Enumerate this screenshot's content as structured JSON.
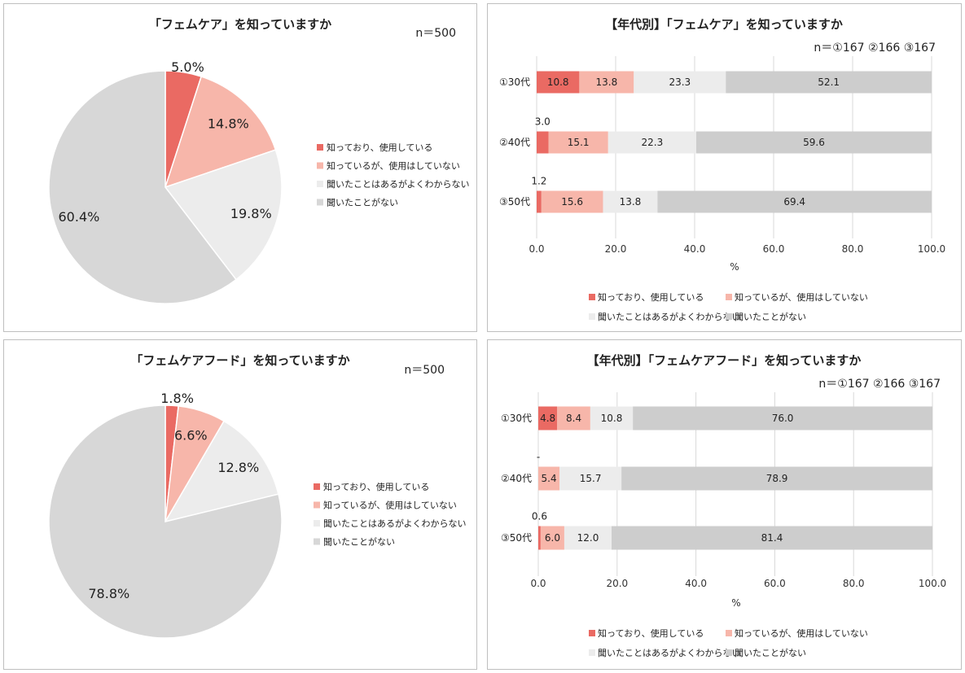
{
  "colors": {
    "knows_uses": "#ea6a63",
    "knows_not_use": "#f7b6aa",
    "heard_unclear": "#ececec",
    "never_heard": "#d7d7d7",
    "bar_never_heard": "#cdcdcd",
    "grid": "#d9d9d9"
  },
  "legend": [
    "知っており、使用している",
    "知っているが、使用はしていない",
    "聞いたことはあるがよくわからない",
    "聞いたことがない"
  ],
  "chart_data": [
    {
      "type": "pie",
      "title": "「フェムケア」を知っていますか",
      "n_label": "n＝500",
      "labels": [
        "知っており、使用している",
        "知っているが、使用はしていない",
        "聞いたことはあるがよくわからない",
        "聞いたことがない"
      ],
      "values": [
        5.0,
        14.8,
        19.8,
        60.4
      ],
      "value_labels": [
        "5.0%",
        "14.8%",
        "19.8%",
        "60.4%"
      ]
    },
    {
      "type": "bar",
      "orientation": "horizontal-stacked",
      "title": "【年代別】「フェムケア」を知っていますか",
      "n_label": "n＝①167 ②166 ③167",
      "categories": [
        "①30代",
        "②40代",
        "③50代"
      ],
      "series": [
        {
          "name": "知っており、使用している",
          "values": [
            10.8,
            3.0,
            1.2
          ]
        },
        {
          "name": "知っているが、使用はしていない",
          "values": [
            13.8,
            15.1,
            15.6
          ]
        },
        {
          "name": "聞いたことはあるがよくわからない",
          "values": [
            23.3,
            22.3,
            13.8
          ]
        },
        {
          "name": "聞いたことがない",
          "values": [
            52.1,
            59.6,
            69.4
          ]
        }
      ],
      "value_labels": [
        [
          "10.8",
          "13.8",
          "23.3",
          "52.1"
        ],
        [
          "3.0",
          "15.1",
          "22.3",
          "59.6"
        ],
        [
          "1.2",
          "15.6",
          "13.8",
          "69.4"
        ]
      ],
      "xlim": [
        0,
        100
      ],
      "xticks": [
        "0.0",
        "20.0",
        "40.0",
        "60.0",
        "80.0",
        "100.0"
      ],
      "xlabel": "%"
    },
    {
      "type": "pie",
      "title": "「フェムケアフード」を知っていますか",
      "n_label": "n＝500",
      "labels": [
        "知っており、使用している",
        "知っているが、使用はしていない",
        "聞いたことはあるがよくわからない",
        "聞いたことがない"
      ],
      "values": [
        1.8,
        6.6,
        12.8,
        78.8
      ],
      "value_labels": [
        "1.8%",
        "6.6%",
        "12.8%",
        "78.8%"
      ]
    },
    {
      "type": "bar",
      "orientation": "horizontal-stacked",
      "title": "【年代別】「フェムケアフード」を知っていますか",
      "n_label": "n＝①167 ②166 ③167",
      "categories": [
        "①30代",
        "②40代",
        "③50代"
      ],
      "series": [
        {
          "name": "知っており、使用している",
          "values": [
            4.8,
            0,
            0.6
          ]
        },
        {
          "name": "知っているが、使用はしていない",
          "values": [
            8.4,
            5.4,
            6.0
          ]
        },
        {
          "name": "聞いたことはあるがよくわからない",
          "values": [
            10.8,
            15.7,
            12.0
          ]
        },
        {
          "name": "聞いたことがない",
          "values": [
            76.0,
            78.9,
            81.4
          ]
        }
      ],
      "value_labels": [
        [
          "4.8",
          "8.4",
          "10.8",
          "76.0"
        ],
        [
          "-",
          "5.4",
          "15.7",
          "78.9"
        ],
        [
          "0.6",
          "6.0",
          "12.0",
          "81.4"
        ]
      ],
      "xlim": [
        0,
        100
      ],
      "xticks": [
        "0.0",
        "20.0",
        "40.0",
        "60.0",
        "80.0",
        "100.0"
      ],
      "xlabel": "%"
    }
  ]
}
